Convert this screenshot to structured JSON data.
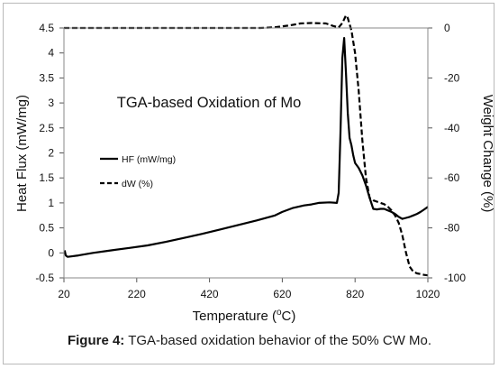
{
  "figure": {
    "caption_label": "Figure 4:",
    "caption_text": " TGA-based oxidation behavior of the 50% CW Mo."
  },
  "chart_data": {
    "type": "line",
    "title": "TGA-based Oxidation of Mo",
    "xlabel": "Temperature (oC)",
    "xlabel_main": "Temperature (",
    "xlabel_sup": "o",
    "xlabel_end": "C)",
    "ylabel": "Heat Flux (mW/mg)",
    "y2label": "Weight Change (%)",
    "xlim": [
      20,
      1020
    ],
    "ylim": [
      -0.5,
      4.5
    ],
    "y2lim": [
      -100,
      0
    ],
    "xticks": [
      "20",
      "220",
      "420",
      "620",
      "820",
      "1020"
    ],
    "yticks": [
      "-0.5",
      "0",
      "0.5",
      "1",
      "1.5",
      "2",
      "2.5",
      "3",
      "3.5",
      "4",
      "4.5"
    ],
    "y2ticks": [
      "0",
      "-20",
      "-40",
      "-60",
      "-80",
      "-100"
    ],
    "legend_position": "left-middle",
    "grid": false,
    "series": [
      {
        "name": "HF (mW/mg)",
        "axis": "left",
        "style": "solid",
        "x": [
          22,
          25,
          30,
          40,
          60,
          100,
          150,
          200,
          250,
          300,
          350,
          400,
          450,
          500,
          550,
          600,
          620,
          650,
          680,
          700,
          720,
          750,
          770,
          775,
          780,
          785,
          790,
          795,
          800,
          805,
          810,
          815,
          820,
          830,
          840,
          850,
          860,
          870,
          880,
          890,
          900,
          910,
          920,
          930,
          940,
          950,
          960,
          970,
          980,
          990,
          1000,
          1010,
          1020
        ],
        "y": [
          0.05,
          -0.05,
          -0.08,
          -0.07,
          -0.05,
          0.0,
          0.05,
          0.1,
          0.15,
          0.22,
          0.3,
          0.38,
          0.47,
          0.56,
          0.65,
          0.75,
          0.82,
          0.9,
          0.95,
          0.97,
          1.0,
          1.01,
          1.0,
          1.2,
          2.4,
          3.9,
          4.3,
          3.6,
          2.8,
          2.3,
          2.15,
          1.95,
          1.8,
          1.7,
          1.55,
          1.35,
          1.1,
          0.88,
          0.87,
          0.88,
          0.88,
          0.85,
          0.82,
          0.78,
          0.72,
          0.68,
          0.7,
          0.72,
          0.75,
          0.78,
          0.82,
          0.87,
          0.92
        ]
      },
      {
        "name": "dW (%)",
        "axis": "right",
        "style": "dashed",
        "x": [
          20,
          100,
          200,
          300,
          400,
          500,
          560,
          600,
          640,
          670,
          700,
          740,
          760,
          775,
          785,
          795,
          800,
          810,
          820,
          830,
          840,
          850,
          860,
          870,
          880,
          890,
          900,
          910,
          920,
          930,
          940,
          950,
          960,
          970,
          980,
          990,
          1000,
          1010,
          1020
        ],
        "y": [
          0,
          0,
          0,
          0,
          0,
          0,
          0,
          0.3,
          1.0,
          1.8,
          2.0,
          1.8,
          0.8,
          0.2,
          2.0,
          5.0,
          4.0,
          -1.0,
          -10.0,
          -25.0,
          -45.0,
          -60.0,
          -68.0,
          -69.0,
          -69.5,
          -70.0,
          -70.5,
          -71.5,
          -73.0,
          -75.0,
          -78.0,
          -83.0,
          -90.0,
          -95.5,
          -97.5,
          -98.2,
          -98.5,
          -98.8,
          -99.0
        ]
      }
    ]
  }
}
